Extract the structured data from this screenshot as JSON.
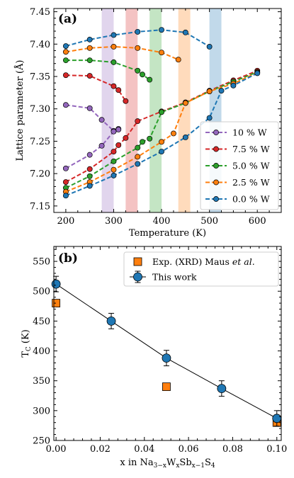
{
  "chart_data": [
    {
      "type": "line",
      "panel_label": "(a)",
      "xlabel": "Temperature (K)",
      "ylabel": "Lattice parameter (Å)",
      "xlim": [
        175,
        650
      ],
      "ylim": [
        7.14,
        7.455
      ],
      "xticks": [
        200,
        300,
        400,
        500,
        600
      ],
      "yticks": [
        7.15,
        7.2,
        7.25,
        7.3,
        7.35,
        7.4,
        7.45
      ],
      "xtick_labels": [
        "200",
        "300",
        "400",
        "500",
        "600"
      ],
      "ytick_labels": [
        "7.15",
        "7.20",
        "7.25",
        "7.30",
        "7.35",
        "7.40",
        "7.45"
      ],
      "grid": false,
      "legend_position": "lower-right",
      "transition_bands": [
        {
          "x_range": [
            275,
            300
          ],
          "color": "#9467bd"
        },
        {
          "x_range": [
            325,
            350
          ],
          "color": "#d62728"
        },
        {
          "x_range": [
            375,
            400
          ],
          "color": "#2ca02c"
        },
        {
          "x_range": [
            435,
            460
          ],
          "color": "#ff7f0e"
        },
        {
          "x_range": [
            500,
            525
          ],
          "color": "#1f77b4"
        }
      ],
      "series": [
        {
          "name": "10 % W",
          "color": "#9467bd",
          "upper": [
            [
              200,
              7.306
            ],
            [
              250,
              7.301
            ],
            [
              275,
              7.283
            ],
            [
              300,
              7.266
            ],
            [
              310,
              7.269
            ]
          ],
          "lower": [
            [
              200,
              7.208
            ],
            [
              250,
              7.229
            ],
            [
              275,
              7.243
            ],
            [
              300,
              7.265
            ],
            [
              310,
              7.268
            ]
          ]
        },
        {
          "name": "7.5 % W",
          "color": "#d62728",
          "upper": [
            [
              200,
              7.352
            ],
            [
              250,
              7.351
            ],
            [
              300,
              7.335
            ],
            [
              310,
              7.329
            ],
            [
              325,
              7.312
            ]
          ],
          "lower": [
            [
              200,
              7.187
            ],
            [
              250,
              7.207
            ],
            [
              300,
              7.234
            ],
            [
              310,
              7.244
            ],
            [
              325,
              7.255
            ],
            [
              350,
              7.281
            ],
            [
              400,
              7.296
            ],
            [
              450,
              7.31
            ],
            [
              500,
              7.328
            ],
            [
              550,
              7.344
            ],
            [
              600,
              7.359
            ]
          ]
        },
        {
          "name": "5.0 % W",
          "color": "#2ca02c",
          "upper": [
            [
              200,
              7.375
            ],
            [
              250,
              7.375
            ],
            [
              300,
              7.372
            ],
            [
              350,
              7.359
            ],
            [
              360,
              7.353
            ],
            [
              375,
              7.345
            ]
          ],
          "lower": [
            [
              200,
              7.178
            ],
            [
              250,
              7.196
            ],
            [
              300,
              7.219
            ],
            [
              350,
              7.24
            ],
            [
              360,
              7.249
            ],
            [
              375,
              7.254
            ],
            [
              400,
              7.295
            ],
            [
              450,
              7.309
            ],
            [
              500,
              7.327
            ],
            [
              550,
              7.342
            ],
            [
              600,
              7.357
            ]
          ]
        },
        {
          "name": "2.5 % W",
          "color": "#ff7f0e",
          "upper": [
            [
              200,
              7.388
            ],
            [
              250,
              7.394
            ],
            [
              300,
              7.396
            ],
            [
              350,
              7.394
            ],
            [
              400,
              7.387
            ],
            [
              435,
              7.376
            ]
          ],
          "lower": [
            [
              200,
              7.172
            ],
            [
              250,
              7.187
            ],
            [
              300,
              7.206
            ],
            [
              350,
              7.226
            ],
            [
              400,
              7.249
            ],
            [
              425,
              7.262
            ],
            [
              450,
              7.309
            ],
            [
              500,
              7.327
            ],
            [
              550,
              7.339
            ],
            [
              600,
              7.356
            ]
          ]
        },
        {
          "name": "0.0 % W",
          "color": "#1f77b4",
          "upper": [
            [
              200,
              7.397
            ],
            [
              250,
              7.407
            ],
            [
              300,
              7.414
            ],
            [
              350,
              7.419
            ],
            [
              400,
              7.422
            ],
            [
              450,
              7.418
            ],
            [
              500,
              7.396
            ]
          ],
          "lower": [
            [
              200,
              7.166
            ],
            [
              250,
              7.181
            ],
            [
              300,
              7.197
            ],
            [
              350,
              7.215
            ],
            [
              400,
              7.234
            ],
            [
              450,
              7.256
            ],
            [
              500,
              7.286
            ],
            [
              525,
              7.328
            ],
            [
              550,
              7.336
            ],
            [
              600,
              7.355
            ]
          ]
        }
      ]
    },
    {
      "type": "scatter",
      "panel_label": "(b)",
      "xlabel": "x in Na",
      "xlabel_parts": {
        "sub1": "3−x",
        "w": "W",
        "sub2": "x",
        "sb": "Sb",
        "sub3": "x−1",
        "s": "S",
        "sub4": "4"
      },
      "ylabel": "T",
      "ylabel_parts": {
        "sub": "C",
        "unit": " (K)"
      },
      "xlim": [
        -0.001,
        0.102
      ],
      "ylim": [
        250,
        575
      ],
      "xticks": [
        0.0,
        0.02,
        0.04,
        0.06,
        0.08,
        0.1
      ],
      "yticks": [
        250,
        300,
        350,
        400,
        450,
        500,
        550
      ],
      "xtick_labels": [
        "0.00",
        "0.02",
        "0.04",
        "0.06",
        "0.08",
        "0.10"
      ],
      "ytick_labels": [
        "250",
        "300",
        "350",
        "400",
        "450",
        "500",
        "550"
      ],
      "grid": false,
      "legend_position": "top-right",
      "series": [
        {
          "name": "Exp. (XRD) Maus",
          "name_suffix": "et al.",
          "color": "#ff7f0e",
          "marker": "square",
          "x": [
            0.0,
            0.05,
            0.1
          ],
          "y": [
            480,
            340,
            280
          ]
        },
        {
          "name": "This work",
          "color": "#1f77b4",
          "marker": "circle",
          "line_color": "#000000",
          "x": [
            0.0,
            0.025,
            0.05,
            0.075,
            0.1
          ],
          "y": [
            512,
            450,
            388,
            337,
            287
          ],
          "yerr": [
            13,
            13,
            13,
            13,
            13
          ]
        }
      ]
    }
  ]
}
